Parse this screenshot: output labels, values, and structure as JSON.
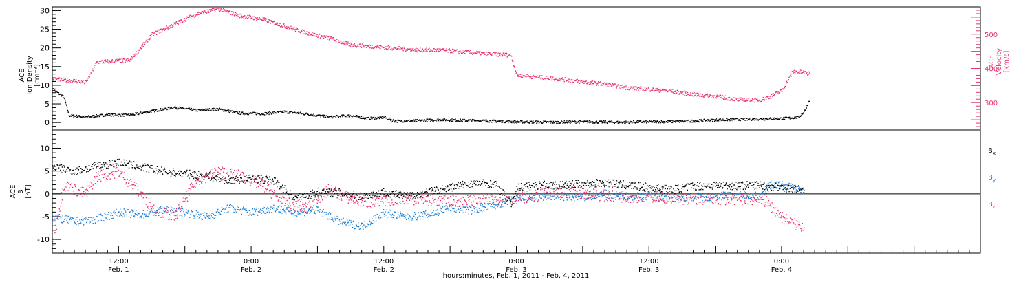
{
  "colors": {
    "black": "#000000",
    "pink": "#e8336a",
    "blue": "#1b7fd6",
    "frame": "#000000"
  },
  "x_axis": {
    "title": "hours:minutes, Feb.  1, 2011 - Feb.  4, 2011",
    "range_hours": [
      0,
      84
    ],
    "major_ticks": [
      {
        "h": 6,
        "time": "12:00",
        "date": "Feb. 1"
      },
      {
        "h": 18,
        "time": "0:00",
        "date": "Feb. 2"
      },
      {
        "h": 30,
        "time": "12:00",
        "date": "Feb. 2"
      },
      {
        "h": 42,
        "time": "0:00",
        "date": "Feb. 3"
      },
      {
        "h": 54,
        "time": "12:00",
        "date": "Feb. 3"
      },
      {
        "h": 66,
        "time": "0:00",
        "date": "Feb. 4"
      }
    ]
  },
  "chart_data": [
    {
      "type": "scatter",
      "panel": "top",
      "ylabel_left": [
        "ACE",
        "Ion Density",
        "[cm⁻³]"
      ],
      "ylabel_right": [
        "ACE",
        "Velocity",
        "[km/s]"
      ],
      "ylim_left": [
        -2,
        31
      ],
      "ylim_right": [
        220,
        580
      ],
      "yticks_left": [
        0,
        5,
        10,
        15,
        20,
        25,
        30
      ],
      "yticks_right": [
        300,
        400,
        500
      ],
      "series": [
        {
          "axis": "left",
          "color": "#000000",
          "points": [
            [
              0,
              9
            ],
            [
              1,
              7
            ],
            [
              1.5,
              2
            ],
            [
              3,
              1.6
            ],
            [
              5,
              2.2
            ],
            [
              7,
              2.1
            ],
            [
              9,
              3.2
            ],
            [
              11,
              4.2
            ],
            [
              13,
              3.4
            ],
            [
              15,
              3.7
            ],
            [
              17,
              2.6
            ],
            [
              19,
              2.5
            ],
            [
              21,
              3
            ],
            [
              23,
              2.4
            ],
            [
              25,
              1.6
            ],
            [
              27,
              2
            ],
            [
              28.5,
              1.2
            ],
            [
              30,
              1.5
            ],
            [
              31,
              0.5
            ],
            [
              33,
              0.6
            ],
            [
              35,
              0.9
            ],
            [
              37,
              0.7
            ],
            [
              39,
              0.6
            ],
            [
              42,
              0.3
            ],
            [
              45,
              0.2
            ],
            [
              48,
              0.3
            ],
            [
              51,
              0.2
            ],
            [
              54,
              0.3
            ],
            [
              57,
              0.4
            ],
            [
              60,
              0.8
            ],
            [
              63,
              1
            ],
            [
              66,
              1.2
            ],
            [
              67.5,
              1.5
            ],
            [
              68,
              3
            ],
            [
              68.5,
              6
            ]
          ]
        },
        {
          "axis": "right",
          "color": "#e8336a",
          "points": [
            [
              0,
              370
            ],
            [
              2,
              365
            ],
            [
              3,
              360
            ],
            [
              4,
              420
            ],
            [
              7,
              425
            ],
            [
              9,
              500
            ],
            [
              11,
              530
            ],
            [
              13,
              560
            ],
            [
              15,
              575
            ],
            [
              17,
              555
            ],
            [
              19,
              545
            ],
            [
              21,
              525
            ],
            [
              23,
              505
            ],
            [
              25,
              490
            ],
            [
              27,
              470
            ],
            [
              29,
              465
            ],
            [
              31,
              460
            ],
            [
              33,
              455
            ],
            [
              35,
              455
            ],
            [
              37,
              450
            ],
            [
              39,
              445
            ],
            [
              41.5,
              440
            ],
            [
              42,
              382
            ],
            [
              44,
              375
            ],
            [
              46,
              370
            ],
            [
              48,
              362
            ],
            [
              50,
              355
            ],
            [
              52,
              345
            ],
            [
              54,
              340
            ],
            [
              56,
              335
            ],
            [
              58,
              325
            ],
            [
              60,
              320
            ],
            [
              62,
              310
            ],
            [
              64,
              308
            ],
            [
              65,
              320
            ],
            [
              66,
              336
            ],
            [
              67,
              392
            ],
            [
              68,
              390
            ],
            [
              68.5,
              385
            ]
          ]
        }
      ]
    },
    {
      "type": "scatter",
      "panel": "bottom",
      "ylabel_left": [
        "ACE",
        "B",
        "[nT]"
      ],
      "ylim": [
        -13,
        14
      ],
      "yticks": [
        -10,
        -5,
        0,
        5,
        10
      ],
      "legend_position": "right",
      "series": [
        {
          "name": "B",
          "sub": "x",
          "color": "#000000",
          "points": [
            [
              0,
              6
            ],
            [
              2,
              5
            ],
            [
              4,
              6.2
            ],
            [
              6,
              7
            ],
            [
              8,
              6
            ],
            [
              10,
              5
            ],
            [
              12,
              4.5
            ],
            [
              14,
              4
            ],
            [
              16,
              3
            ],
            [
              18,
              3.5
            ],
            [
              20,
              3
            ],
            [
              22,
              -1
            ],
            [
              24,
              0.5
            ],
            [
              26,
              0.3
            ],
            [
              28,
              -0.5
            ],
            [
              30,
              0.5
            ],
            [
              32,
              -0.5
            ],
            [
              34,
              0.5
            ],
            [
              36,
              1.5
            ],
            [
              38,
              2.5
            ],
            [
              40,
              2.3
            ],
            [
              41.5,
              -2
            ],
            [
              42,
              1.5
            ],
            [
              44,
              2
            ],
            [
              46,
              2
            ],
            [
              48,
              2.2
            ],
            [
              50,
              2.5
            ],
            [
              52,
              2
            ],
            [
              54,
              1.5
            ],
            [
              56,
              1
            ],
            [
              58,
              1.8
            ],
            [
              60,
              2
            ],
            [
              62,
              1.9
            ],
            [
              64,
              2
            ],
            [
              66,
              1.5
            ],
            [
              68,
              1
            ]
          ]
        },
        {
          "name": "B",
          "sub": "y",
          "color": "#1b7fd6",
          "points": [
            [
              0,
              -5
            ],
            [
              2,
              -6
            ],
            [
              4,
              -5.5
            ],
            [
              6,
              -4
            ],
            [
              8,
              -4.5
            ],
            [
              10,
              -3.5
            ],
            [
              12,
              -4
            ],
            [
              14,
              -5
            ],
            [
              16,
              -3
            ],
            [
              18,
              -4
            ],
            [
              20,
              -3
            ],
            [
              22,
              -4
            ],
            [
              24,
              -3.5
            ],
            [
              26,
              -6
            ],
            [
              28,
              -7
            ],
            [
              30,
              -4
            ],
            [
              32,
              -5
            ],
            [
              34,
              -4.5
            ],
            [
              36,
              -3
            ],
            [
              38,
              -3.5
            ],
            [
              40,
              -2.5
            ],
            [
              42,
              -1
            ],
            [
              44,
              -0.5
            ],
            [
              46,
              -0.5
            ],
            [
              48,
              -0.8
            ],
            [
              50,
              0
            ],
            [
              52,
              -0.5
            ],
            [
              54,
              -0.3
            ],
            [
              56,
              -1
            ],
            [
              58,
              -0.5
            ],
            [
              60,
              -0.5
            ],
            [
              62,
              0
            ],
            [
              64,
              -0.5
            ],
            [
              65,
              2
            ],
            [
              66,
              2
            ],
            [
              67,
              1.5
            ],
            [
              68,
              0.5
            ]
          ]
        },
        {
          "name": "B",
          "sub": "z",
          "color": "#e8336a",
          "points": [
            [
              0,
              -11
            ],
            [
              1,
              2
            ],
            [
              3,
              0
            ],
            [
              4,
              4
            ],
            [
              6,
              5
            ],
            [
              8,
              0
            ],
            [
              9,
              -3
            ],
            [
              11,
              -5
            ],
            [
              13,
              3
            ],
            [
              15,
              5
            ],
            [
              17,
              4
            ],
            [
              19,
              2
            ],
            [
              21,
              -2
            ],
            [
              23,
              -3
            ],
            [
              25,
              1
            ],
            [
              27,
              -1
            ],
            [
              29,
              -2
            ],
            [
              31,
              -1
            ],
            [
              33,
              -1
            ],
            [
              35,
              -1.5
            ],
            [
              37,
              -1.5
            ],
            [
              39,
              -1.2
            ],
            [
              41,
              -1
            ],
            [
              43,
              -0.5
            ],
            [
              45,
              0
            ],
            [
              47,
              0.5
            ],
            [
              49,
              0
            ],
            [
              51,
              -0.5
            ],
            [
              53,
              -0.5
            ],
            [
              55,
              -0.5
            ],
            [
              57,
              -1
            ],
            [
              59,
              -1
            ],
            [
              61,
              -1
            ],
            [
              63,
              -1
            ],
            [
              64.5,
              -1.5
            ],
            [
              66,
              -5
            ],
            [
              67,
              -6.5
            ],
            [
              68,
              -7
            ]
          ]
        }
      ]
    }
  ]
}
